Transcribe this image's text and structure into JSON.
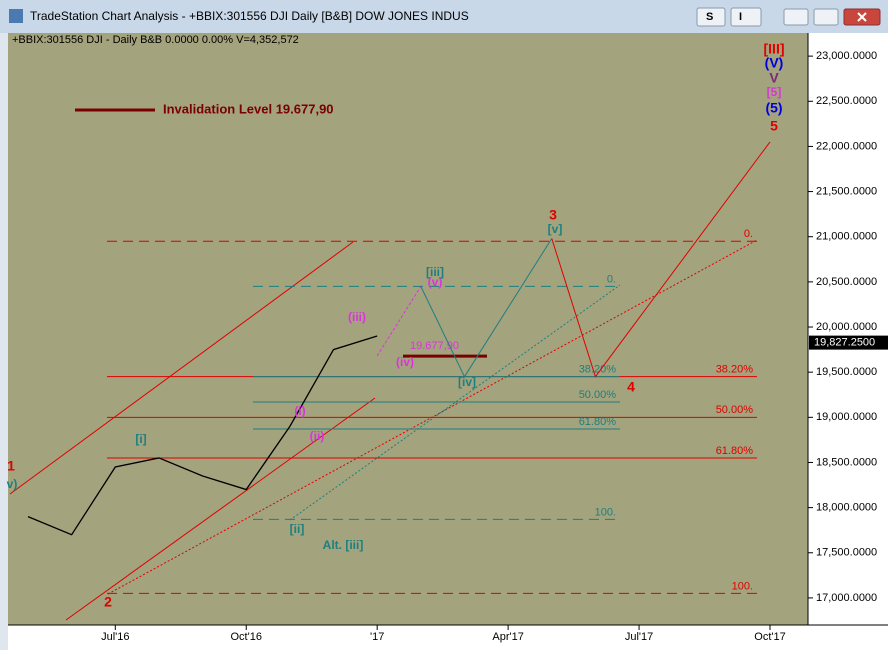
{
  "window_title": "TradeStation Chart Analysis - +BBIX:301556 DJI Daily [B&B] DOW JONES INDUS",
  "buttons": [
    "S",
    "I"
  ],
  "chart_data": {
    "type": "line",
    "subtitle": "+BBIX:301556 DJI - Daily  B&B  0.0000  0.00%  V=4,352,572",
    "ylim": [
      16700,
      23245
    ],
    "yticks": [
      {
        "value": 17000,
        "label": "17,000.0000"
      },
      {
        "value": 17500,
        "label": "17,500.0000"
      },
      {
        "value": 18000,
        "label": "18,000.0000"
      },
      {
        "value": 18500,
        "label": "18,500.0000"
      },
      {
        "value": 19000,
        "label": "19,000.0000"
      },
      {
        "value": 19500,
        "label": "19,500.0000"
      },
      {
        "value": 20000,
        "label": "20,000.0000"
      },
      {
        "value": 20500,
        "label": "20,500.0000"
      },
      {
        "value": 21000,
        "label": "21,000.0000"
      },
      {
        "value": 21500,
        "label": "21,500.0000"
      },
      {
        "value": 22000,
        "label": "22,000.0000"
      },
      {
        "value": 22500,
        "label": "22,500.0000"
      },
      {
        "value": 23000,
        "label": "23,000.0000"
      }
    ],
    "xlim": [
      "2016-05",
      "2017-10"
    ],
    "xticks": [
      {
        "value": "2016-07",
        "label": "Jul'16"
      },
      {
        "value": "2016-10",
        "label": "Oct'16"
      },
      {
        "value": "2017-01",
        "label": "'17"
      },
      {
        "value": "2017-04",
        "label": "Apr'17"
      },
      {
        "value": "2017-07",
        "label": "Jul'17"
      },
      {
        "value": "2017-10",
        "label": "Oct'17"
      }
    ],
    "last_price": {
      "value": 19827.25,
      "label": "19,827.2500"
    },
    "series": [
      {
        "color": "#000000",
        "x": [
          "2016-05",
          "2016-06",
          "2016-07",
          "2016-08",
          "2016-09",
          "2016-10",
          "2016-11",
          "2016-12",
          "2017-01"
        ],
        "values": [
          17900,
          17700,
          18450,
          18550,
          18350,
          18200,
          18900,
          19750,
          19900
        ]
      },
      {
        "color": "#dd33dd",
        "x": [
          "2017-01",
          "2017-02"
        ],
        "values": [
          19680,
          20450
        ]
      },
      {
        "color": "#1e7f7f",
        "x": [
          "2017-02",
          "2017-03",
          "2017-05"
        ],
        "values": [
          20450,
          19450,
          20980
        ]
      },
      {
        "color": "#e00000",
        "x": [
          "2017-05",
          "2017-06",
          "2017-10"
        ],
        "values": [
          20980,
          19450,
          22050
        ]
      }
    ],
    "fib_red": {
      "color": "#e00000",
      "values": [
        20950,
        19450,
        19000,
        18550,
        17050
      ],
      "labels": [
        "0.",
        "38.20%",
        "50.00%",
        "61.80%",
        "100."
      ]
    },
    "fib_teal": {
      "color": "#1e7f7f",
      "values": [
        20450,
        19450,
        19170,
        18870,
        17870
      ],
      "labels": [
        "0.",
        "38.20%",
        "50.00%",
        "61.80%",
        "100."
      ]
    },
    "invalidation": {
      "text": "Invalidation Level 19.677,90",
      "value": 19677.9,
      "value_label": "19.677,90",
      "color": "#7a0000"
    },
    "annotations": [
      {
        "text": "1",
        "color": "#e00000"
      },
      {
        "text": "v)",
        "color": "#1e7f7f"
      },
      {
        "text": "[i]",
        "color": "#1e7f7f"
      },
      {
        "text": "2",
        "color": "#e00000"
      },
      {
        "text": "[ii]",
        "color": "#1e7f7f"
      },
      {
        "text": "Alt. [iii]",
        "color": "#1e7f7f"
      },
      {
        "text": "(i)",
        "color": "#dd33dd"
      },
      {
        "text": "(ii)",
        "color": "#dd33dd"
      },
      {
        "text": "(iii)",
        "color": "#dd33dd"
      },
      {
        "text": "(iv)",
        "color": "#dd33dd"
      },
      {
        "text": "(v)",
        "color": "#dd33dd"
      },
      {
        "text": "[iii]",
        "color": "#1e7f7f"
      },
      {
        "text": "[iv]",
        "color": "#1e7f7f"
      },
      {
        "text": "[v]",
        "color": "#1e7f7f"
      },
      {
        "text": "3",
        "color": "#e00000"
      },
      {
        "text": "4",
        "color": "#e00000"
      },
      {
        "text": "[III]",
        "color": "#e00000"
      },
      {
        "text": "(V)",
        "color": "#0000dd"
      },
      {
        "text": "V",
        "color": "#7a2a7a"
      },
      {
        "text": "[5]",
        "color": "#dd33dd"
      },
      {
        "text": "(5)",
        "color": "#0000dd"
      },
      {
        "text": "5",
        "color": "#e00000"
      }
    ]
  }
}
